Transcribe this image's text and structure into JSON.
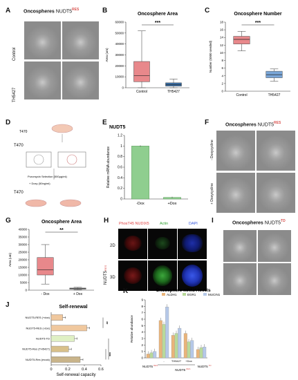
{
  "panelA": {
    "letter": "A",
    "title": "Oncospheres",
    "gene": "NUDT5",
    "sup": "RES",
    "row1": "Control",
    "row2": "TH5427"
  },
  "panelB": {
    "letter": "B",
    "title": "Oncosphere Area"
  },
  "panelC": {
    "letter": "C",
    "title": "Oncosphere Number"
  },
  "panelD": {
    "letter": "D",
    "label1": "T470",
    "label2": "T470",
    "label3": "T470",
    "step": "Puromycin Selection (500μg/ml)",
    "note": "+ Doxy (50ng/ml)"
  },
  "panelE": {
    "letter": "E",
    "title": "NUDT5"
  },
  "panelF": {
    "letter": "F",
    "title": "Oncospheres",
    "gene": "NUDT5",
    "sup": "RES",
    "row1": "- Doxycycline",
    "row2": "+ Doxycycline"
  },
  "panelG": {
    "letter": "G",
    "title": "Oncosphere Area"
  },
  "panelH": {
    "letter": "H",
    "c1": "PhosT45 NUDIX5",
    "c2": "Actin",
    "c3": "DAPI",
    "r1": "2D",
    "r2": "3D",
    "side": "NUDT5",
    "sideSup": "RES"
  },
  "panelI": {
    "letter": "I",
    "title": "Oncospheres",
    "gene": "NUDT5",
    "sup": "TD"
  },
  "panelJ": {
    "letter": "J",
    "title": "Self-renewal"
  },
  "panelK": {
    "letter": "K",
    "title": "Oncosphere mRNA levels",
    "group1": "NUDT5",
    "group1sup": "RES",
    "group2": "NUDT5",
    "group2sup": "TD"
  },
  "chart_data": [
    {
      "type": "box",
      "id": "B",
      "title": "Oncosphere Area",
      "ylabel": "Area (um)",
      "ylim": [
        0,
        60000
      ],
      "yticks": [
        0,
        10000,
        20000,
        30000,
        40000,
        50000,
        60000
      ],
      "categories": [
        "Control",
        "TH5427"
      ],
      "boxes": [
        {
          "min": 0,
          "q1": 5500,
          "median": 11000,
          "q3": 24000,
          "max": 52000,
          "color": "#e8888b"
        },
        {
          "min": 0,
          "q1": 1500,
          "median": 2800,
          "q3": 4500,
          "max": 8000,
          "color": "#3a6ea5"
        }
      ],
      "significance": "***"
    },
    {
      "type": "box",
      "id": "C",
      "title": "Oncosphere Number",
      "ylabel": "Number (5000 seeded)",
      "ylim": [
        0,
        18
      ],
      "yticks": [
        0,
        2,
        4,
        6,
        8,
        10,
        12,
        14,
        16,
        18
      ],
      "categories": [
        "Control",
        "TH5427"
      ],
      "boxes": [
        {
          "min": 10.5,
          "q1": 12.3,
          "median": 13.5,
          "q3": 14.3,
          "max": 15.6,
          "color": "#e8888b"
        },
        {
          "min": 2.6,
          "q1": 3.5,
          "median": 4.3,
          "q3": 5.2,
          "max": 5.8,
          "color": "#7aa6d8"
        }
      ],
      "significance": "***"
    },
    {
      "type": "bar",
      "id": "E",
      "title": "NUDT5",
      "ylabel": "Relative mRNA abundance",
      "ylim": [
        0,
        1.2
      ],
      "yticks": [
        0,
        0.2,
        0.4,
        0.6,
        0.8,
        1,
        1.2
      ],
      "categories": [
        "-Dox",
        "+Dox"
      ],
      "values": [
        1.0,
        0.03
      ],
      "color": "#8fce8f"
    },
    {
      "type": "box",
      "id": "G",
      "title": "Oncosphere Area",
      "ylabel": "Area (um)",
      "ylim": [
        0,
        40000
      ],
      "yticks": [
        0,
        5000,
        10000,
        15000,
        20000,
        25000,
        30000,
        35000,
        40000
      ],
      "categories": [
        "- Dox",
        "+ Dox"
      ],
      "boxes": [
        {
          "min": 4000,
          "q1": 10000,
          "median": 13500,
          "q3": 21500,
          "max": 30000,
          "color": "#e8888b"
        },
        {
          "min": 300,
          "q1": 700,
          "median": 1000,
          "q3": 1400,
          "max": 1900,
          "color": "#9a9a9a"
        }
      ],
      "significance": "**"
    },
    {
      "type": "bar",
      "id": "J",
      "title": "Self-renewal",
      "xlabel": "Self-renewal capacity",
      "xlim": [
        0,
        0.6
      ],
      "xticks": [
        0,
        0.2,
        0.4,
        0.6
      ],
      "categories": [
        "NUDT5-RES (+dox)",
        "NUDT5-RES (-dox)",
        "NUDT5-TD",
        "NUDT5-Res (TH5427)",
        "NUDT5-Res (mock)"
      ],
      "values": [
        0.14,
        0.43,
        0.28,
        0.21,
        0.35
      ],
      "colors": [
        "#f0c89e",
        "#f0c89e",
        "#dff0c4",
        "#d8c08a",
        "#c9b48a"
      ],
      "significance": [
        "**",
        "***",
        "**"
      ]
    },
    {
      "type": "bar",
      "id": "K",
      "title": "Oncosphere mRNA levels",
      "ylabel": "Relative abundance",
      "ylim": [
        0,
        9
      ],
      "yticks": [
        0,
        1,
        2,
        3,
        4,
        5,
        6,
        7,
        8,
        9
      ],
      "categories": [
        "",
        "-",
        "TH5427",
        "+Dox",
        ""
      ],
      "series": [
        {
          "name": "ALDH1",
          "values": [
            0.6,
            5.8,
            3.5,
            3.8,
            1.3
          ],
          "color": "#e9b47a"
        },
        {
          "name": "EGR1",
          "values": [
            0.8,
            5.2,
            3.8,
            2.5,
            1.6
          ],
          "color": "#b8d99a"
        },
        {
          "name": "MUCIN1",
          "values": [
            1.0,
            7.9,
            4.6,
            2.7,
            1.7
          ],
          "color": "#b5c8e8"
        }
      ]
    }
  ]
}
